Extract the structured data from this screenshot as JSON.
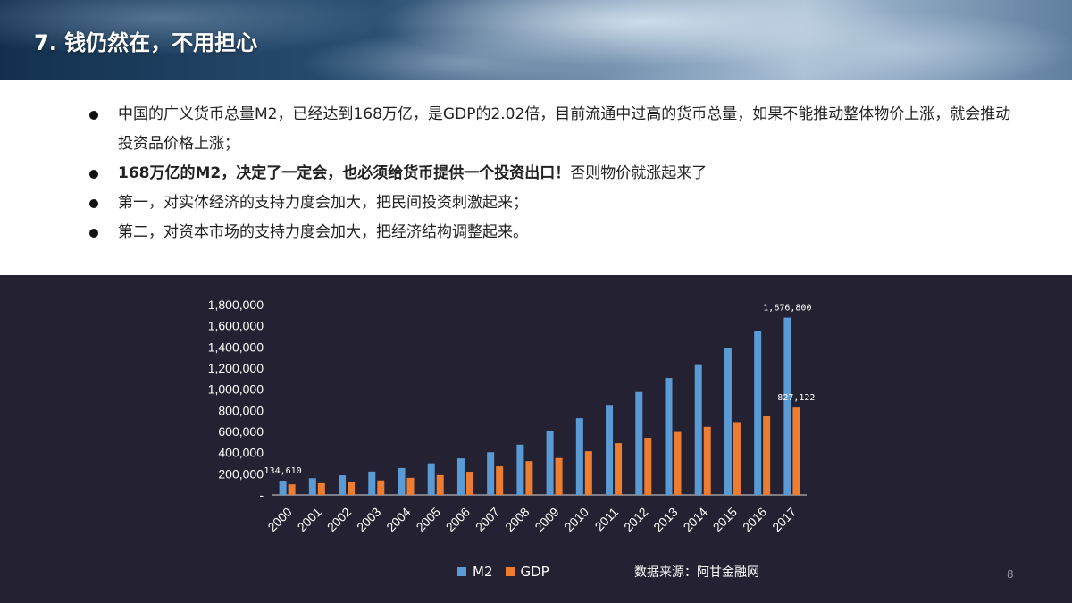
{
  "slide": {
    "title": "7. 钱仍然在，不用担心",
    "page_number": "8",
    "source": "数据来源：阿甘金融网"
  },
  "bullets": [
    {
      "text": "中国的广义货币总量M2，已经达到168万亿，是GDP的2.02倍，目前流通中过高的货币总量，如果不能推动整体物价上涨，就会推动投资品价格上涨；",
      "bold_part": "",
      "rest": ""
    },
    {
      "text": "",
      "bold_part": "168万亿的M2，决定了一定会，也必须给货币提供一个投资出口！",
      "rest": "否则物价就涨起来了"
    },
    {
      "text": "第一，对实体经济的支持力度会加大，把民间投资刺激起来；",
      "bold_part": "",
      "rest": ""
    },
    {
      "text": "第二，对资本市场的支持力度会加大，把经济结构调整起来。",
      "bold_part": "",
      "rest": ""
    }
  ],
  "chart_data": {
    "type": "bar",
    "categories": [
      "2000",
      "2001",
      "2002",
      "2003",
      "2004",
      "2005",
      "2006",
      "2007",
      "2008",
      "2009",
      "2010",
      "2011",
      "2012",
      "2013",
      "2014",
      "2015",
      "2016",
      "2017"
    ],
    "series": [
      {
        "name": "M2",
        "color": "#5b9bd5",
        "values": [
          134610,
          158302,
          185007,
          221223,
          254107,
          298756,
          345578,
          403442,
          475167,
          606225,
          725852,
          851591,
          974149,
          1106525,
          1228375,
          1392278,
          1550067,
          1676800
        ]
      },
      {
        "name": "GDP",
        "color": "#ed7d31",
        "values": [
          100280,
          110863,
          121717,
          137422,
          161840,
          187319,
          219439,
          270232,
          319516,
          349081,
          413030,
          489301,
          540367,
          595244,
          643974,
          689052,
          743586,
          827122
        ]
      }
    ],
    "ylim": [
      0,
      1800000
    ],
    "yticks": [
      0,
      200000,
      400000,
      600000,
      800000,
      1000000,
      1200000,
      1400000,
      1600000,
      1800000
    ],
    "ytick_labels": [
      "-",
      "200,000",
      "400,000",
      "600,000",
      "800,000",
      "1,000,000",
      "1,200,000",
      "1,400,000",
      "1,600,000",
      "1,800,000"
    ],
    "data_labels": [
      {
        "series": "M2",
        "category": "2000",
        "text": "134,610"
      },
      {
        "series": "M2",
        "category": "2017",
        "text": "1,676,800"
      },
      {
        "series": "GDP",
        "category": "2017",
        "text": "827,122"
      }
    ],
    "legend_position": "bottom",
    "grid": false,
    "title": "",
    "xlabel": "",
    "ylabel": ""
  }
}
